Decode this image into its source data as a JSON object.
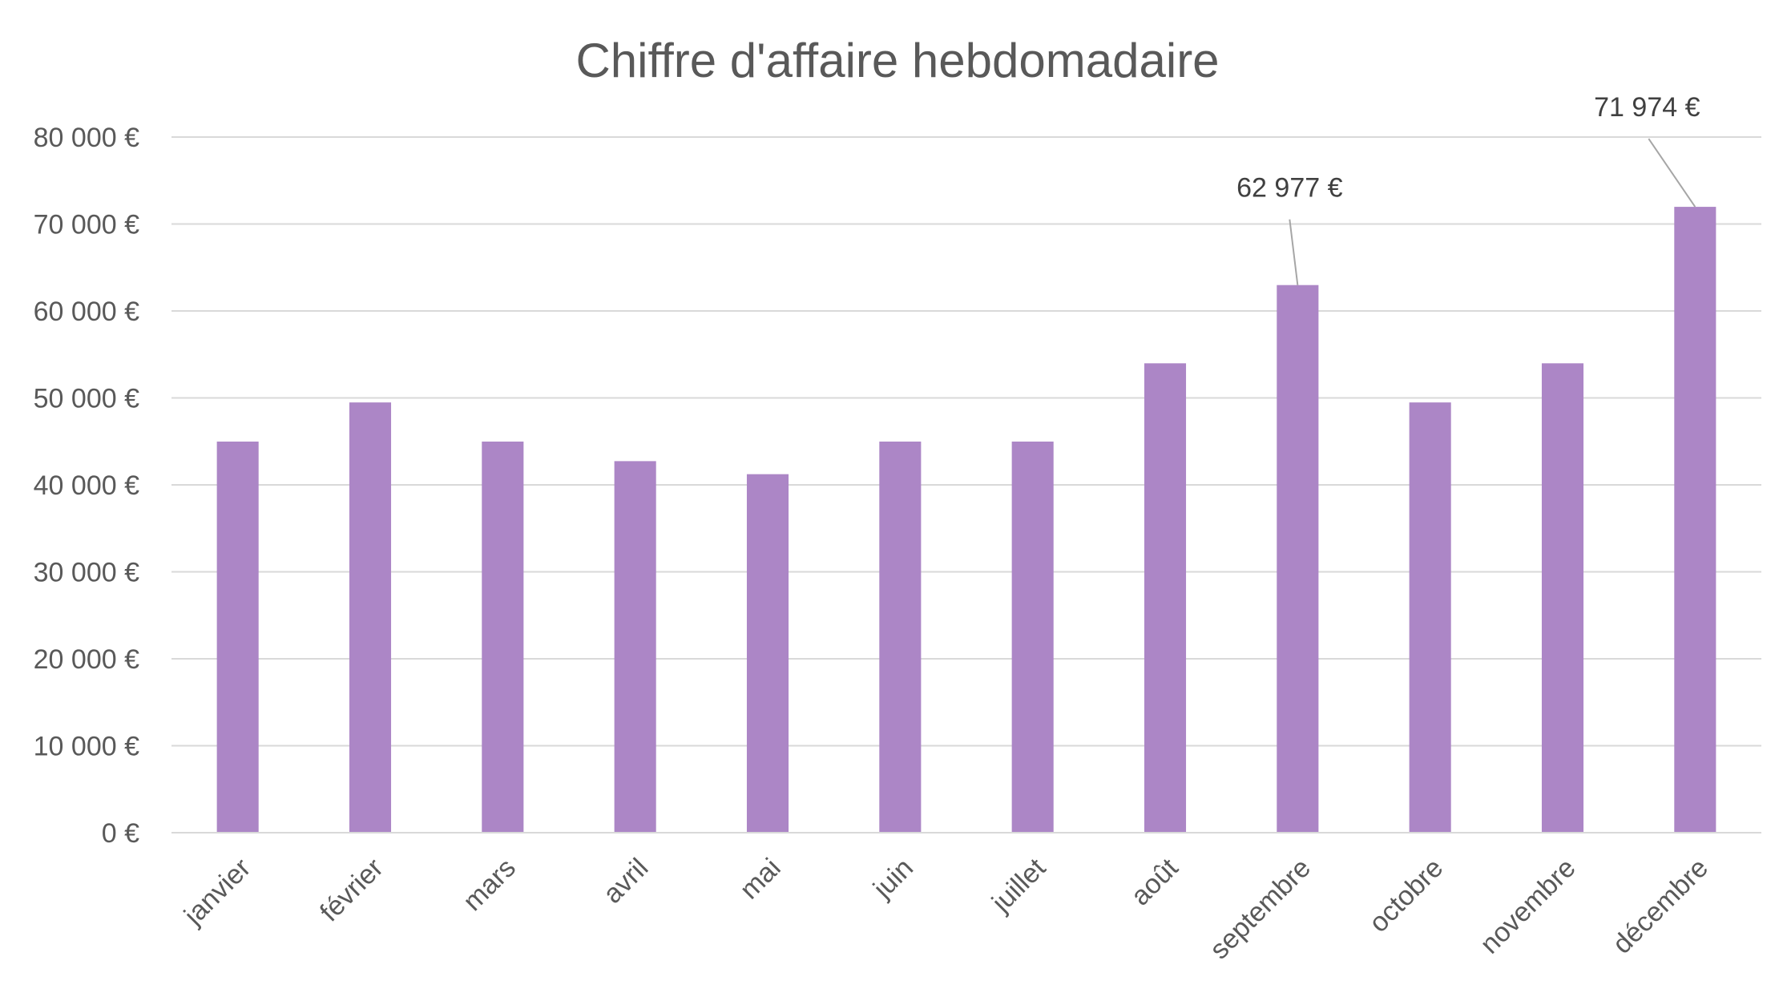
{
  "chart_data": {
    "type": "bar",
    "title": "Chiffre d'affaire hebdomadaire",
    "xlabel": "",
    "ylabel": "",
    "categories": [
      "janvier",
      "février",
      "mars",
      "avril",
      "mai",
      "juin",
      "juillet",
      "août",
      "septembre",
      "octobre",
      "novembre",
      "décembre"
    ],
    "values": [
      44980,
      49480,
      44980,
      42730,
      41230,
      44980,
      44980,
      53980,
      62977,
      49480,
      53980,
      71974
    ],
    "ylim": [
      0,
      80000
    ],
    "y_ticks": [
      0,
      10000,
      20000,
      30000,
      40000,
      50000,
      60000,
      70000,
      80000
    ],
    "y_tick_labels": [
      "0 €",
      "10 000 €",
      "20 000 €",
      "30 000 €",
      "40 000 €",
      "50 000 €",
      "60 000 €",
      "70 000 €",
      "80 000 €"
    ],
    "data_labels": [
      {
        "category": "septembre",
        "text": "62 977 €"
      },
      {
        "category": "décembre",
        "text": "71 974 €"
      }
    ],
    "grid": true,
    "legend": "none",
    "bar_color": "#AC86C6",
    "gridline_color": "#D9D9D9",
    "text_color": "#595959"
  }
}
